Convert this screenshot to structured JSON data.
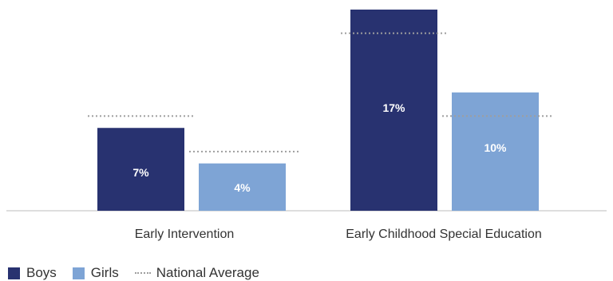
{
  "chart_data": {
    "type": "bar",
    "categories": [
      "Early Intervention",
      "Early Childhood Special Education"
    ],
    "series": [
      {
        "name": "Boys",
        "values": [
          7,
          17
        ],
        "labels": [
          "7%",
          "17%"
        ],
        "color": "#283270"
      },
      {
        "name": "Girls",
        "values": [
          4,
          10
        ],
        "labels": [
          "4%",
          "10%"
        ],
        "color": "#7ea4d5"
      }
    ],
    "reference": {
      "name": "National Average",
      "boys": [
        8,
        15
      ],
      "girls": [
        5,
        8
      ]
    },
    "ylim": [
      0,
      17
    ],
    "grid": false,
    "legend_position": "bottom-left"
  },
  "legend": {
    "boys": "Boys",
    "girls": "Girls",
    "national_average": "National Average"
  },
  "colors": {
    "boys": "#283270",
    "girls": "#7ea4d5",
    "reference": "#9e9e9e",
    "axis": "#bdbdbd"
  }
}
